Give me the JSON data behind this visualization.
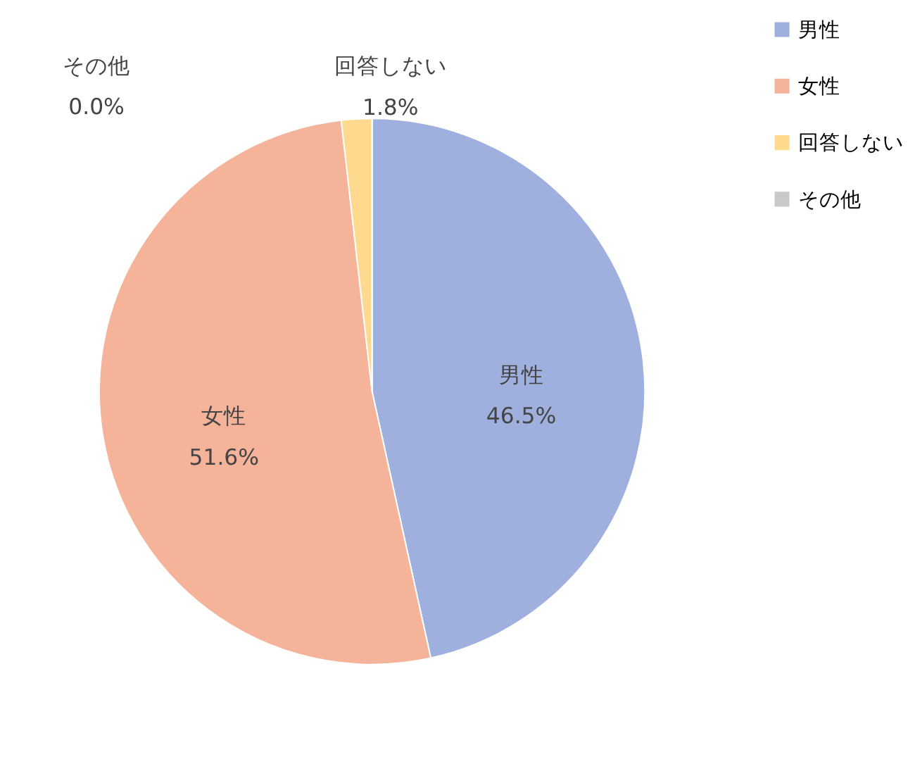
{
  "chart_data": {
    "type": "pie",
    "categories": [
      "男性",
      "女性",
      "回答しない",
      "その他"
    ],
    "values": [
      46.5,
      51.6,
      1.8,
      0.0
    ],
    "value_labels": [
      "46.5%",
      "51.6%",
      "1.8%",
      "0.0%"
    ],
    "colors": [
      "#9fb0de",
      "#f5b39a",
      "#ffd98e",
      "#c9c9c9"
    ],
    "legend": "right"
  }
}
